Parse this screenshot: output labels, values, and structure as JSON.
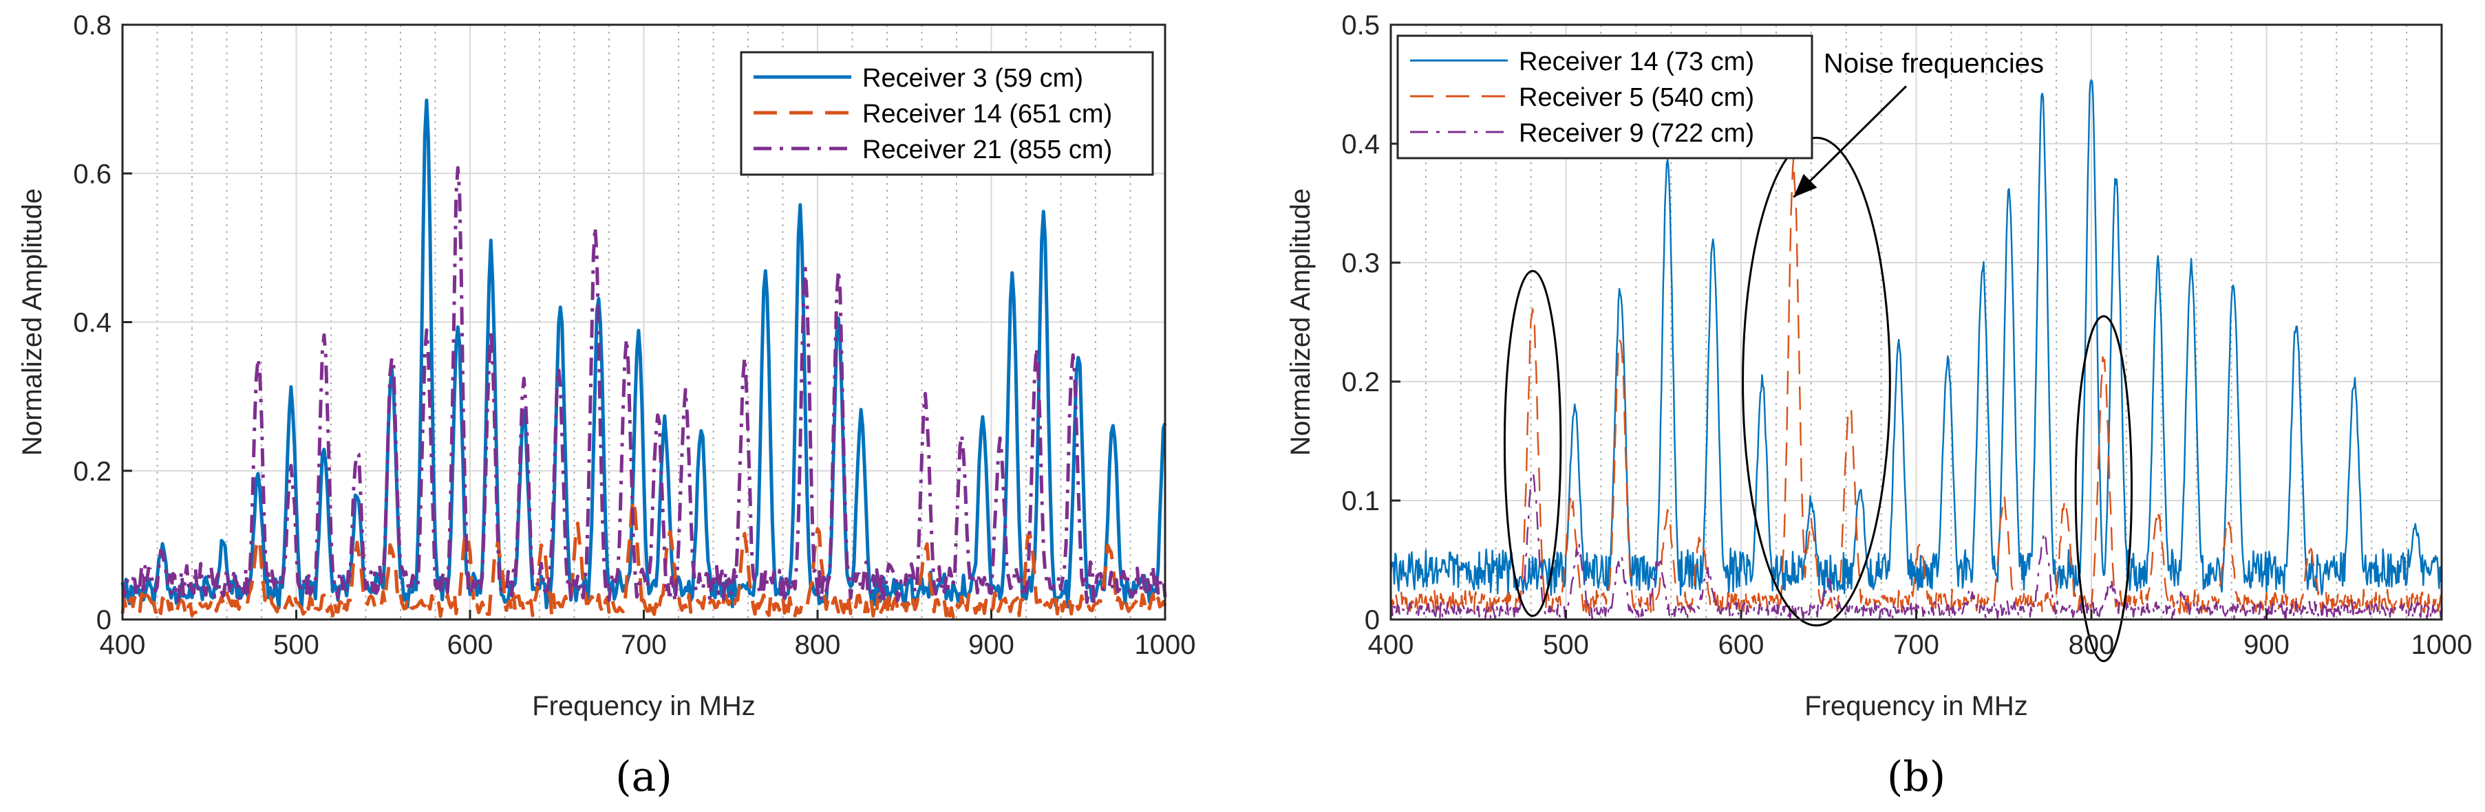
{
  "colors": {
    "blue": "#0072bd",
    "orange": "#d95319",
    "purple": "#7e2f8e",
    "grid_major": "#d9d9d9",
    "grid_minor": "#b0b0b0",
    "axis": "#262626"
  },
  "chart_data": [
    {
      "type": "line",
      "panel_label": "(a)",
      "title": "",
      "xlabel": "Frequency in MHz",
      "ylabel": "Normalized Amplitude",
      "xlim": [
        400,
        1000
      ],
      "ylim": [
        0,
        0.8
      ],
      "xticks": [
        400,
        500,
        600,
        700,
        800,
        900,
        1000
      ],
      "yticks": [
        0,
        0.2,
        0.4,
        0.6,
        0.8
      ],
      "ytick_labels": [
        "0",
        "0.2",
        "0.4",
        "0.6",
        "0.8"
      ],
      "grid": true,
      "legend_position": "top-right",
      "series": [
        {
          "name": "Receiver 3 (59 cm)",
          "color": "blue",
          "style": "solid",
          "peaks": [
            [
              423,
              0.1
            ],
            [
              458,
              0.11
            ],
            [
              478,
              0.2
            ],
            [
              497,
              0.31
            ],
            [
              516,
              0.23
            ],
            [
              535,
              0.17
            ],
            [
              555,
              0.34
            ],
            [
              575,
              0.7
            ],
            [
              593,
              0.4
            ],
            [
              612,
              0.5
            ],
            [
              631,
              0.28
            ],
            [
              652,
              0.42
            ],
            [
              674,
              0.44
            ],
            [
              697,
              0.39
            ],
            [
              712,
              0.27
            ],
            [
              733,
              0.26
            ],
            [
              770,
              0.47
            ],
            [
              790,
              0.55
            ],
            [
              812,
              0.41
            ],
            [
              825,
              0.28
            ],
            [
              895,
              0.28
            ],
            [
              912,
              0.47
            ],
            [
              930,
              0.55
            ],
            [
              950,
              0.36
            ],
            [
              970,
              0.27
            ],
            [
              1000,
              0.27
            ]
          ],
          "baseline": 0.04
        },
        {
          "name": "Receiver 14 (651 cm)",
          "color": "orange",
          "style": "dashed",
          "peaks": [
            [
              478,
              0.11
            ],
            [
              535,
              0.1
            ],
            [
              555,
              0.1
            ],
            [
              598,
              0.12
            ],
            [
              616,
              0.1
            ],
            [
              642,
              0.1
            ],
            [
              662,
              0.12
            ],
            [
              694,
              0.16
            ],
            [
              715,
              0.12
            ],
            [
              758,
              0.11
            ],
            [
              800,
              0.12
            ],
            [
              862,
              0.1
            ],
            [
              922,
              0.11
            ],
            [
              968,
              0.1
            ]
          ],
          "baseline": 0.02
        },
        {
          "name": "Receiver 21 (855 cm)",
          "color": "purple",
          "style": "dashdot",
          "peaks": [
            [
              423,
              0.09
            ],
            [
              478,
              0.36
            ],
            [
              497,
              0.2
            ],
            [
              516,
              0.39
            ],
            [
              535,
              0.23
            ],
            [
              555,
              0.36
            ],
            [
              575,
              0.38
            ],
            [
              593,
              0.61
            ],
            [
              612,
              0.38
            ],
            [
              631,
              0.32
            ],
            [
              651,
              0.33
            ],
            [
              672,
              0.52
            ],
            [
              690,
              0.37
            ],
            [
              708,
              0.28
            ],
            [
              724,
              0.3
            ],
            [
              758,
              0.35
            ],
            [
              793,
              0.47
            ],
            [
              812,
              0.47
            ],
            [
              862,
              0.3
            ],
            [
              883,
              0.25
            ],
            [
              905,
              0.24
            ],
            [
              926,
              0.36
            ],
            [
              947,
              0.36
            ]
          ],
          "baseline": 0.05
        }
      ]
    },
    {
      "type": "line",
      "panel_label": "(b)",
      "title": "",
      "xlabel": "Frequency in MHz",
      "ylabel": "Normalized Amplitude",
      "xlim": [
        400,
        1000
      ],
      "ylim": [
        0,
        0.5
      ],
      "xticks": [
        400,
        500,
        600,
        700,
        800,
        900,
        1000
      ],
      "yticks": [
        0,
        0.1,
        0.2,
        0.3,
        0.4,
        0.5
      ],
      "ytick_labels": [
        "0",
        "0.1",
        "0.2",
        "0.3",
        "0.4",
        "0.5"
      ],
      "grid": true,
      "legend_position": "top-left",
      "annotation": {
        "text": "Noise frequencies",
        "arrow_to": [
          630,
          0.355
        ],
        "text_at": [
          710,
          0.468
        ]
      },
      "ellipses": [
        {
          "center": [
            481,
            0.148
          ],
          "semi_axes": [
            16,
            0.145
          ]
        },
        {
          "center": [
            643,
            0.2
          ],
          "semi_axes": [
            42,
            0.205
          ]
        },
        {
          "center": [
            807,
            0.11
          ],
          "semi_axes": [
            16,
            0.145
          ]
        }
      ],
      "series": [
        {
          "name": "Receiver 14 (73 cm)",
          "color": "blue",
          "style": "solid",
          "peaks": [
            [
              430,
              0.05
            ],
            [
              505,
              0.18
            ],
            [
              531,
              0.28
            ],
            [
              558,
              0.39
            ],
            [
              584,
              0.32
            ],
            [
              612,
              0.2
            ],
            [
              640,
              0.1
            ],
            [
              668,
              0.11
            ],
            [
              690,
              0.23
            ],
            [
              718,
              0.22
            ],
            [
              738,
              0.3
            ],
            [
              753,
              0.36
            ],
            [
              772,
              0.44
            ],
            [
              800,
              0.46
            ],
            [
              814,
              0.37
            ],
            [
              838,
              0.3
            ],
            [
              857,
              0.3
            ],
            [
              881,
              0.28
            ],
            [
              917,
              0.25
            ],
            [
              950,
              0.2
            ],
            [
              985,
              0.08
            ]
          ],
          "baseline": 0.04
        },
        {
          "name": "Receiver 5 (540 cm)",
          "color": "orange",
          "style": "dashed",
          "peaks": [
            [
              481,
              0.26
            ],
            [
              503,
              0.1
            ],
            [
              531,
              0.24
            ],
            [
              558,
              0.09
            ],
            [
              577,
              0.07
            ],
            [
              630,
              0.38
            ],
            [
              640,
              0.08
            ],
            [
              662,
              0.18
            ],
            [
              702,
              0.06
            ],
            [
              750,
              0.1
            ],
            [
              785,
              0.1
            ],
            [
              807,
              0.22
            ],
            [
              838,
              0.09
            ],
            [
              878,
              0.08
            ],
            [
              925,
              0.06
            ]
          ],
          "baseline": 0.015
        },
        {
          "name": "Receiver 9 (722 cm)",
          "color": "purple",
          "style": "dashdot",
          "peaks": [
            [
              481,
              0.12
            ],
            [
              507,
              0.06
            ],
            [
              531,
              0.05
            ],
            [
              553,
              0.05
            ],
            [
              581,
              0.04
            ],
            [
              650,
              0.03
            ],
            [
              731,
              0.02
            ],
            [
              773,
              0.07
            ],
            [
              811,
              0.03
            ],
            [
              852,
              0.02
            ]
          ],
          "baseline": 0.008
        }
      ]
    }
  ]
}
